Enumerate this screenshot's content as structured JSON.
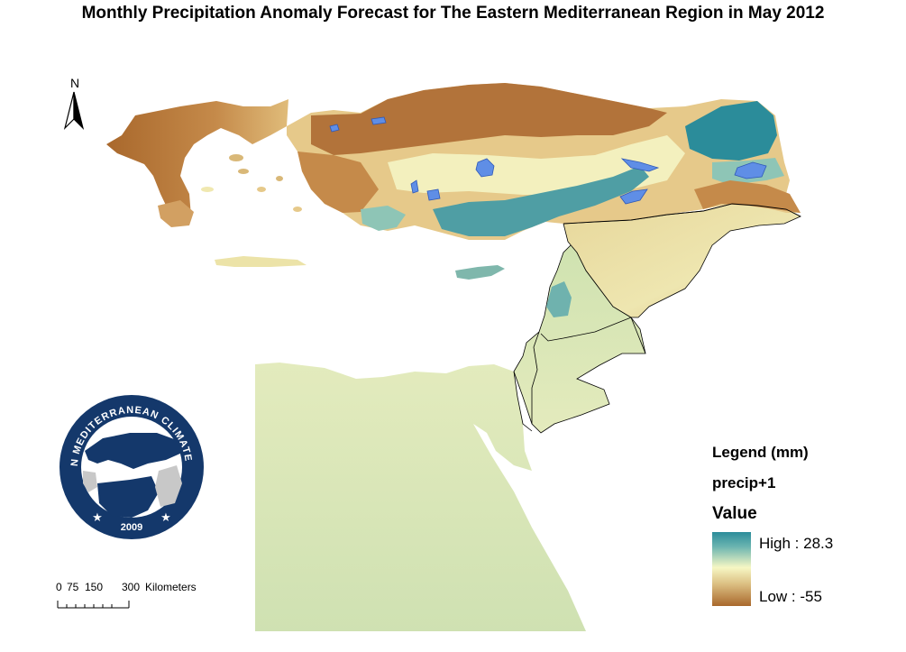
{
  "title": "Monthly Precipitation Anomaly Forecast for The Eastern Mediterranean Region in May 2012",
  "north_arrow": {
    "label": "N"
  },
  "logo": {
    "ring_text": "EASTERN MEDITERRANEAN CLIMATE CENTRE",
    "year": "2009",
    "colors": {
      "ring": "#14386b",
      "land": "#14386b",
      "land_grey": "#c8c8c8",
      "sea": "#ffffff"
    }
  },
  "scale_bar": {
    "ticks": [
      "0",
      "75",
      "150",
      "300"
    ],
    "unit": "Kilometers"
  },
  "legend": {
    "title": "Legend (mm)",
    "layer": "precip+1",
    "field": "Value",
    "high_label": "High : 28.3",
    "low_label": "Low : -55",
    "high_value": 28.3,
    "low_value": -55,
    "colors": {
      "high": "#2b8c9a",
      "mid": "#f6f7c4",
      "low": "#a9682c"
    }
  },
  "map_colors": {
    "dry_strong": "#a9682c",
    "dry": "#cf9a55",
    "dry_light": "#e6c98a",
    "neutral": "#f6f4c2",
    "neutral_green": "#d8e6b6",
    "wet_light": "#8ec5b6",
    "wet": "#2b8c9a",
    "lake": "#5f8ee6",
    "border": "#000000"
  }
}
